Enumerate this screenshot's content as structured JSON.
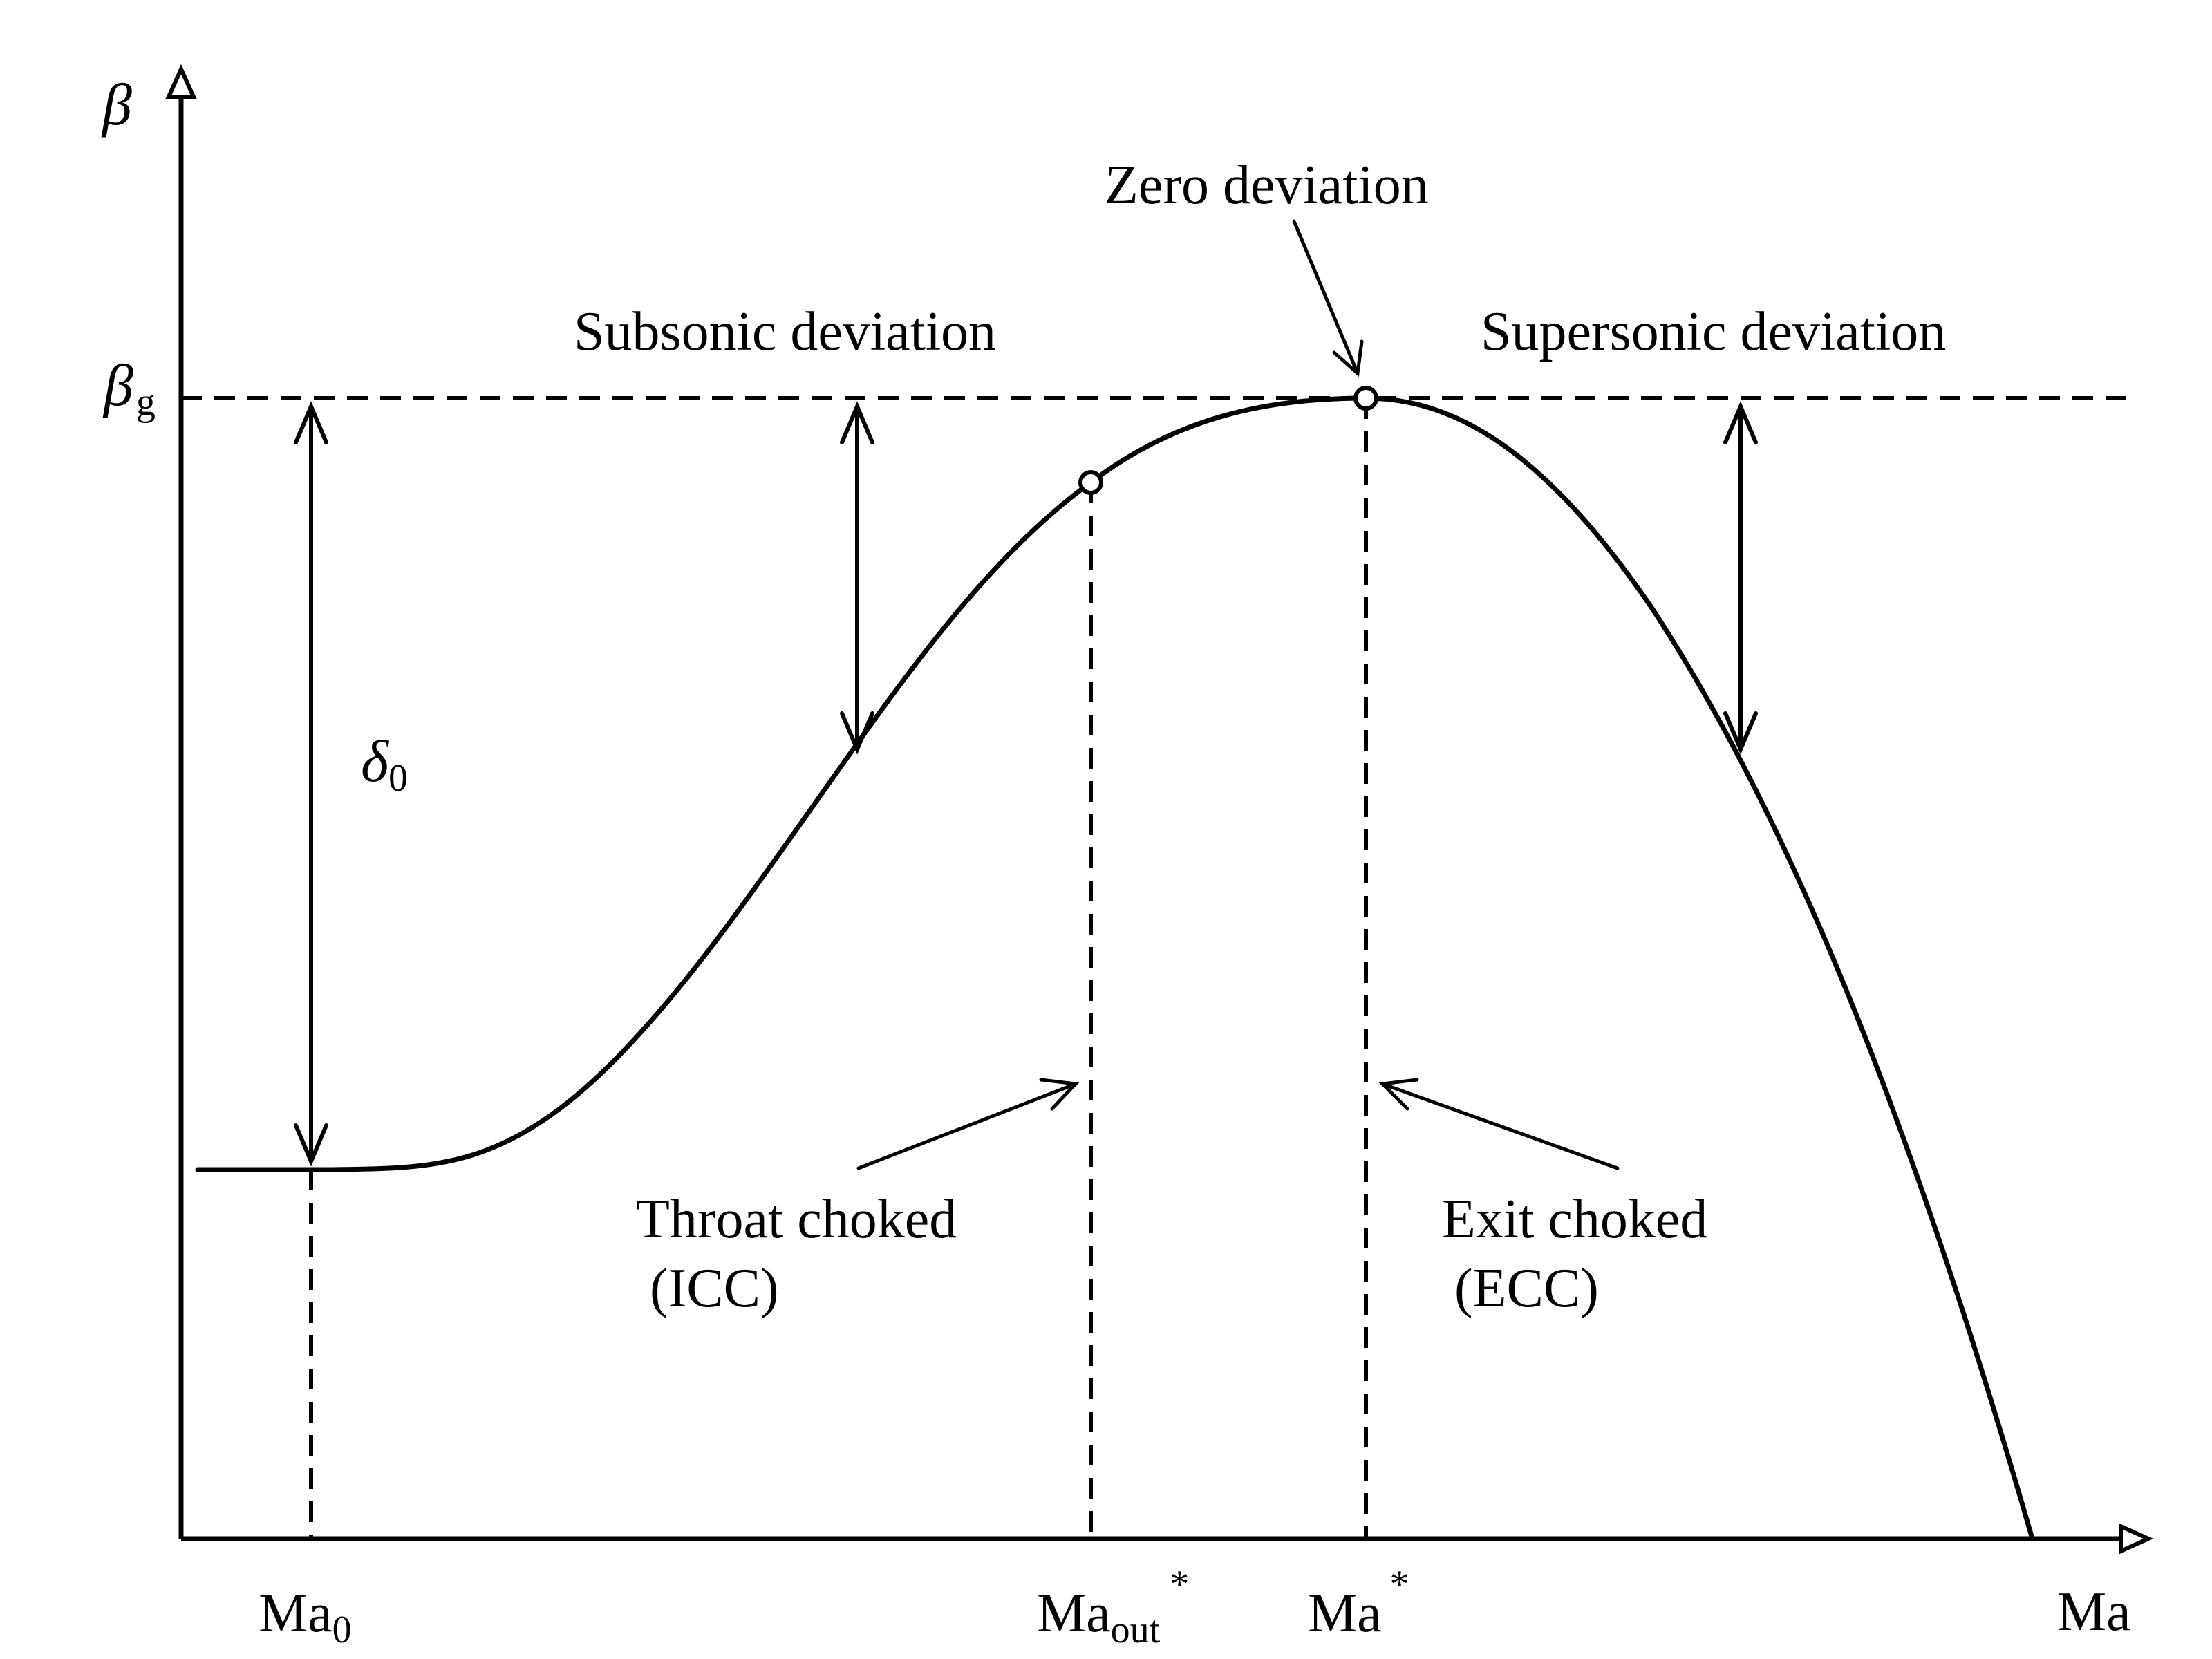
{
  "axes": {
    "y_label": "β",
    "x_label": "Ma"
  },
  "reference": {
    "symbol": "β",
    "subscript": "g"
  },
  "offset": {
    "symbol": "δ",
    "subscript": "0"
  },
  "regions": {
    "subsonic": "Subsonic deviation",
    "supersonic": "Supersonic deviation",
    "zero": "Zero deviation"
  },
  "choke": {
    "throat_line1": "Throat choked",
    "throat_line2": "(ICC)",
    "exit_line1": "Exit choked",
    "exit_line2": "(ECC)"
  },
  "ticks": {
    "ma0_base": "Ma",
    "ma0_sub": "0",
    "maout_base": "Ma",
    "maout_sub": "out",
    "maout_sup": "*",
    "mastar_base": "Ma",
    "mastar_sup": "*"
  },
  "colors": {
    "ink": "#000000",
    "background": "#ffffff"
  }
}
